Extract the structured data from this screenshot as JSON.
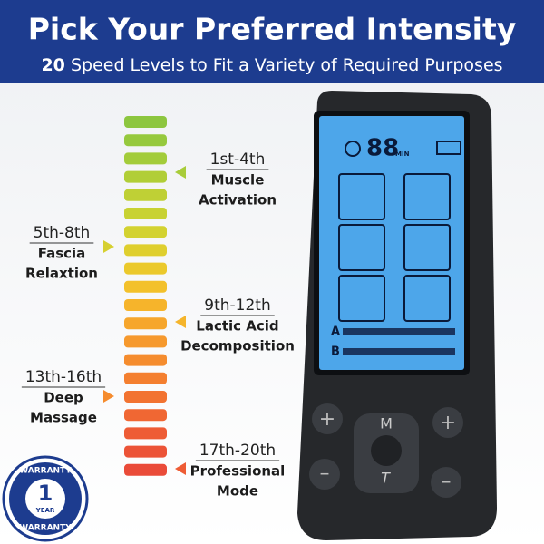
{
  "header": {
    "title": "Pick Your Preferred Intensity",
    "subtitle": {
      "number": "20",
      "text": "Speed Levels to Fit a Variety of Required Purposes"
    }
  },
  "groups": [
    {
      "range": "1st-4th",
      "lines": [
        "Muscle",
        "Activation"
      ]
    },
    {
      "range": "5th-8th",
      "lines": [
        "Fascia",
        "Relaxtion"
      ]
    },
    {
      "range": "9th-12th",
      "lines": [
        "Lactic Acid",
        "Decomposition"
      ]
    },
    {
      "range": "13th-16th",
      "lines": [
        "Deep",
        "Massage"
      ]
    },
    {
      "range": "17th-20th",
      "lines": [
        "Professional",
        "Mode"
      ]
    }
  ],
  "device": {
    "timer": "88",
    "timer_unit": "MIN",
    "channel_a": "A",
    "channel_b": "B",
    "mode_key": "M",
    "time_key": "T",
    "plus": "+",
    "minus": "–"
  },
  "badge": {
    "top": "WARRANTY",
    "number": "1",
    "unit": "YEAR",
    "bottom": "WARRANTY"
  }
}
